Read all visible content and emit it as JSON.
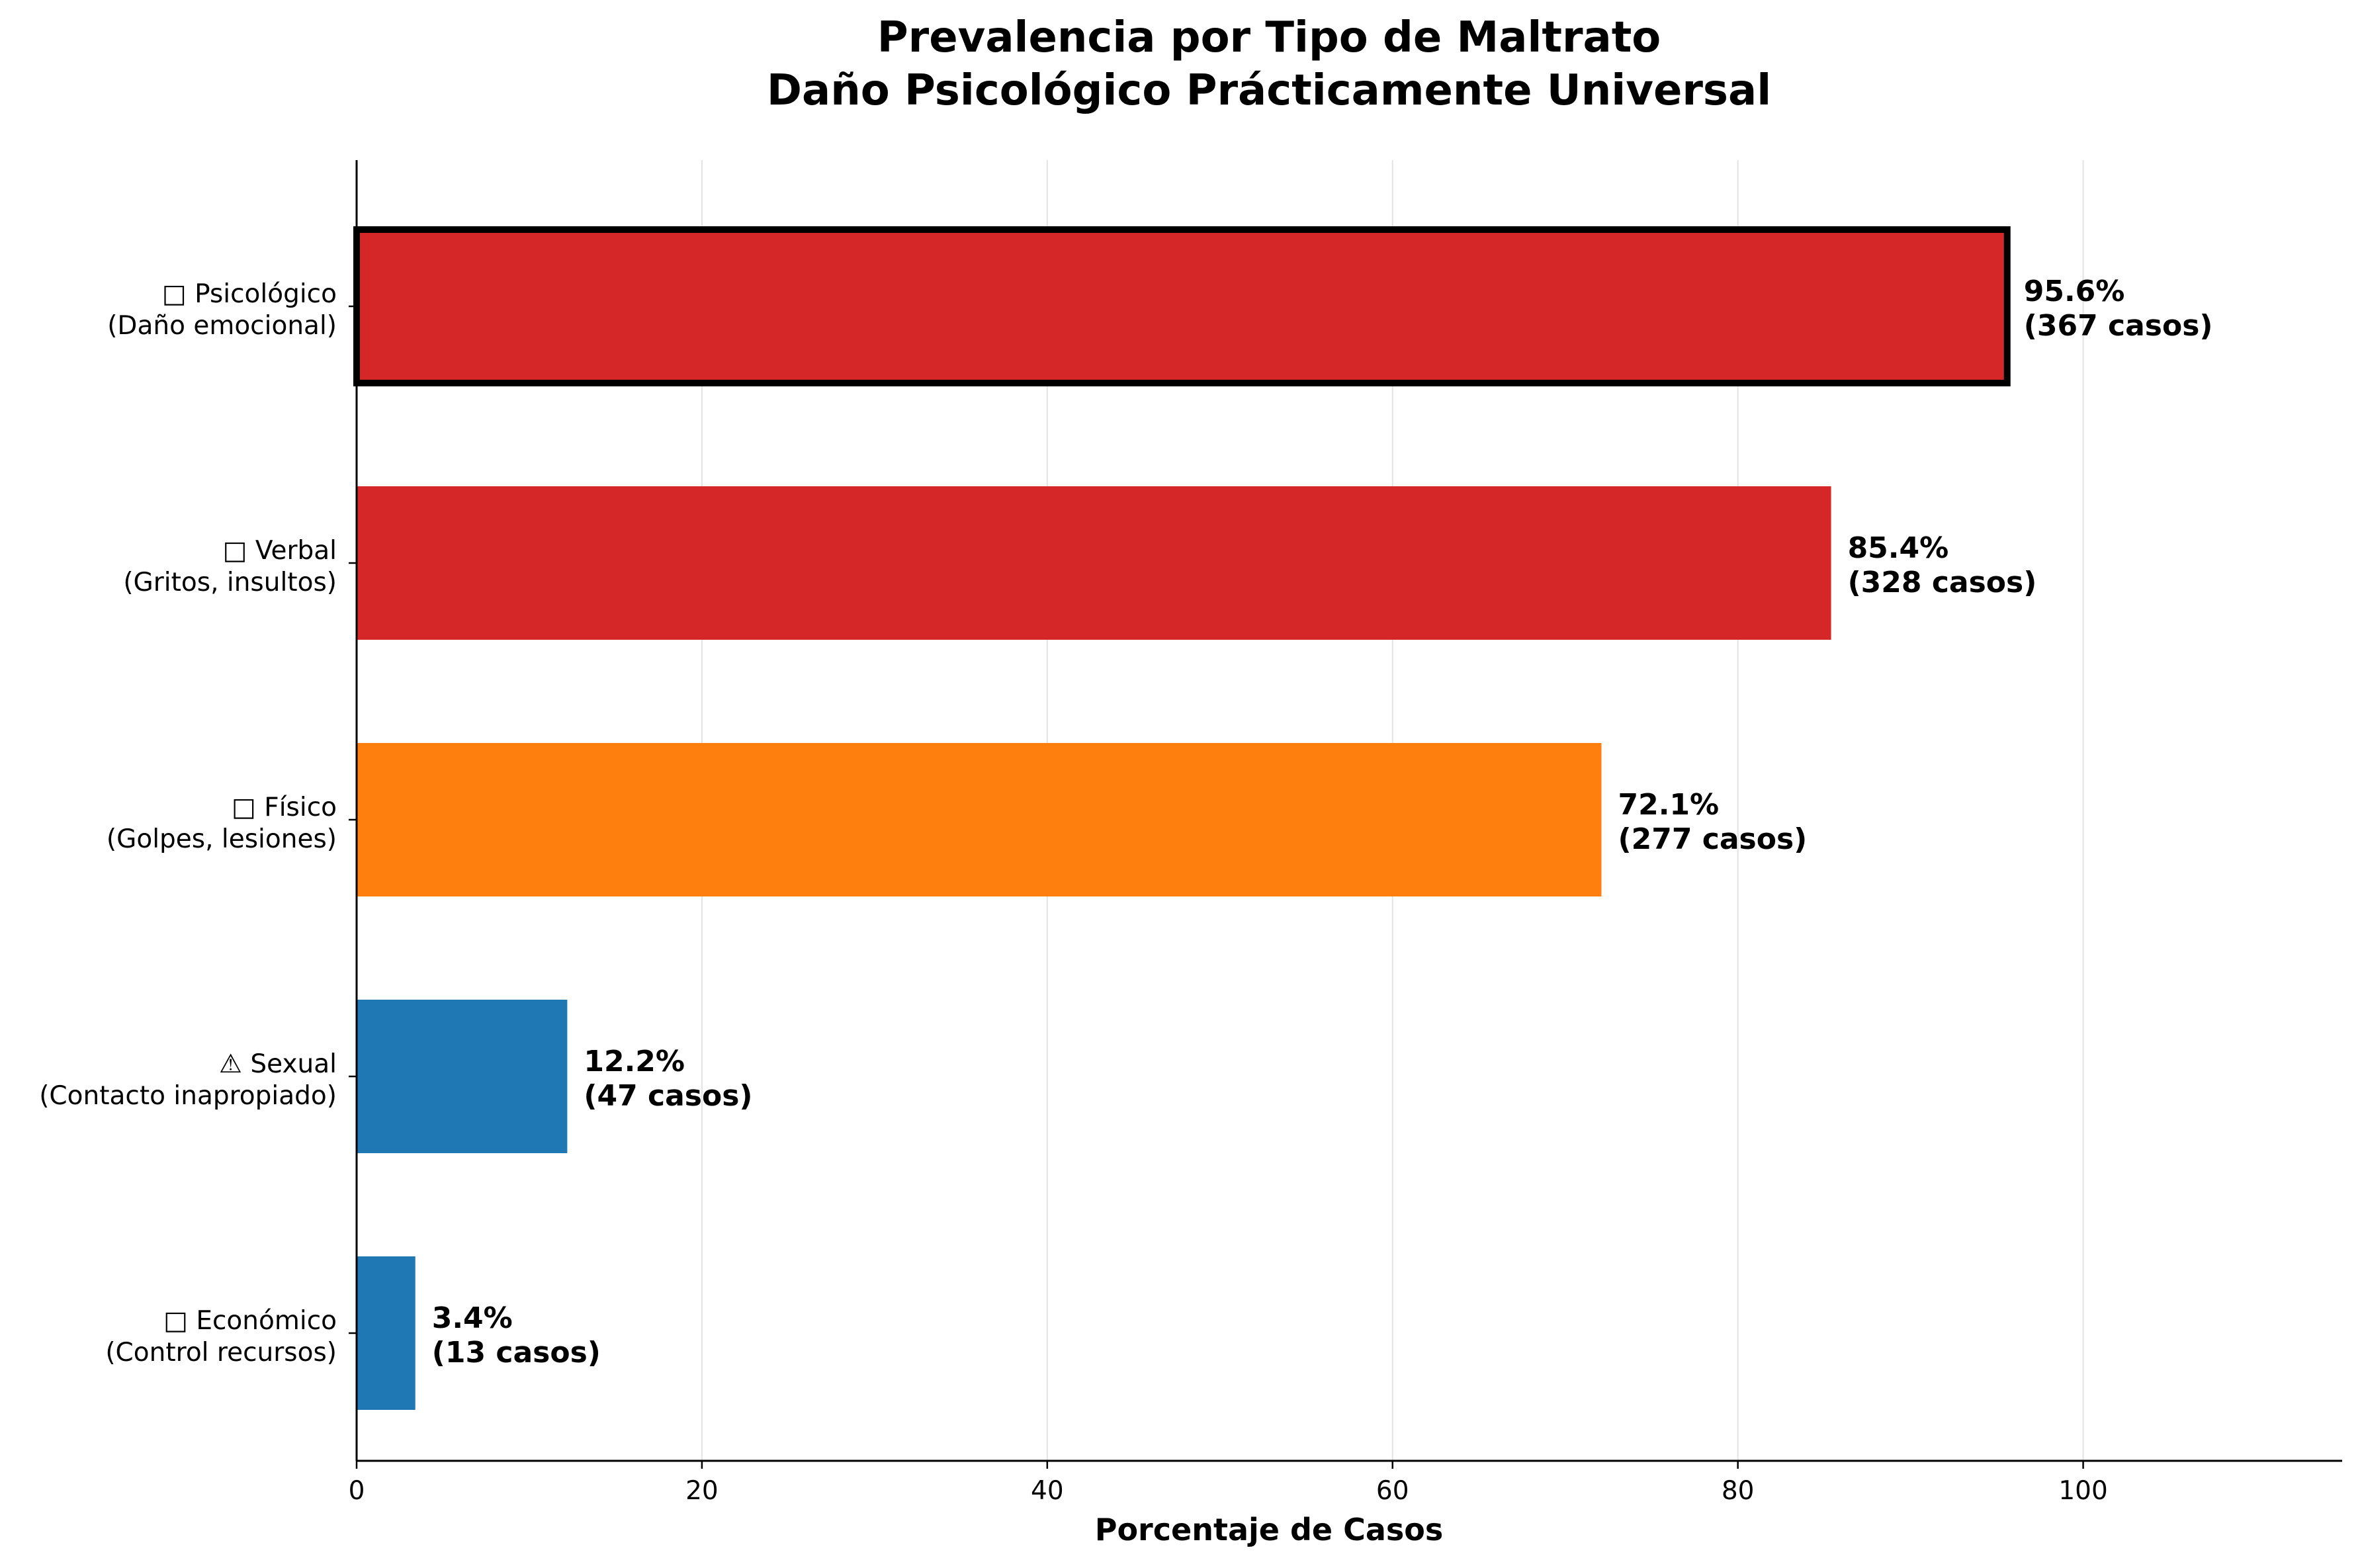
{
  "chart_data": {
    "type": "bar",
    "orientation": "horizontal",
    "title": "Prevalencia por Tipo de Maltrato",
    "subtitle": "Daño Psicológico Prácticamente Universal",
    "xlabel": "Porcentaje de Casos",
    "ylabel": "",
    "xlim": [
      0,
      115
    ],
    "xticks": [
      "0",
      "20",
      "40",
      "60",
      "80",
      "100"
    ],
    "grid": "vertical",
    "legend": "none",
    "categories": [
      {
        "icon": "brain-icon",
        "glyph": "□",
        "name": "Psicológico",
        "desc": "(Daño emocional)"
      },
      {
        "icon": "speech-icon",
        "glyph": "□",
        "name": "Verbal",
        "desc": "(Gritos, insultos)"
      },
      {
        "icon": "fist-icon",
        "glyph": "□",
        "name": "Físico",
        "desc": "(Golpes, lesiones)"
      },
      {
        "icon": "warning-icon",
        "glyph": "⚠",
        "name": "Sexual",
        "desc": "(Contacto inapropiado)"
      },
      {
        "icon": "money-icon",
        "glyph": "□",
        "name": "Económico",
        "desc": "(Control recursos)"
      }
    ],
    "values": [
      95.6,
      85.4,
      72.1,
      12.2,
      3.4
    ],
    "cases": [
      367,
      328,
      277,
      47,
      13
    ],
    "value_labels": [
      "95.6%",
      "85.4%",
      "72.1%",
      "12.2%",
      "3.4%"
    ],
    "case_labels": [
      "(367 casos)",
      "(328 casos)",
      "(277 casos)",
      "(47 casos)",
      "(13 casos)"
    ],
    "colors": [
      "#d62728",
      "#d62728",
      "#ff7f0e",
      "#1f77b4",
      "#1f77b4"
    ],
    "highlighted": [
      true,
      false,
      false,
      false,
      false
    ]
  }
}
